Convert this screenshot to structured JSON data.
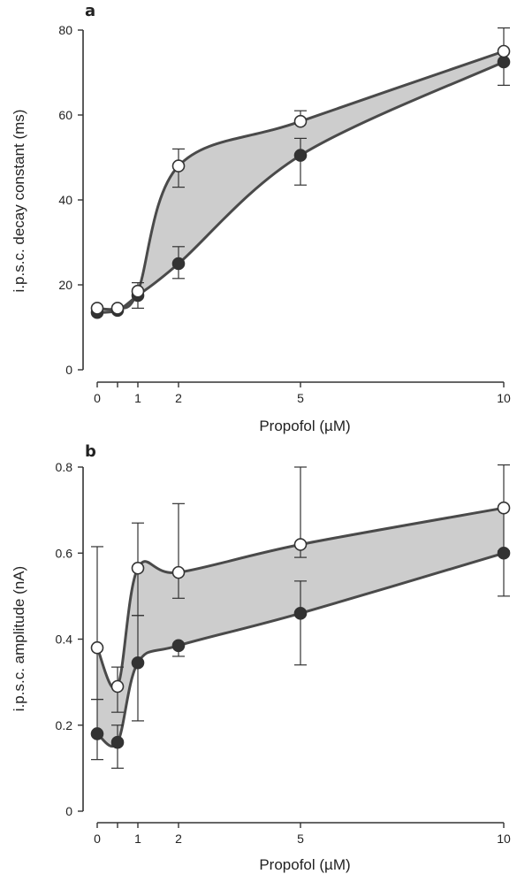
{
  "chart_data": [
    {
      "type": "line",
      "panel_label": "a",
      "xlabel": "Propofol (µM)",
      "ylabel": "i.p.s.c. decay constant (ms)",
      "xlim": [
        -0.3,
        10
      ],
      "ylim": [
        0,
        80
      ],
      "xticks": [
        0,
        0.5,
        1,
        2,
        5,
        10
      ],
      "xtick_labels": [
        "0",
        "",
        "1",
        "2",
        "5",
        "10"
      ],
      "yticks": [
        0,
        20,
        40,
        60,
        80
      ],
      "ytick_labels": [
        "0",
        "20",
        "40",
        "60",
        "80"
      ],
      "shaded_between_series": true,
      "series": [
        {
          "marker": "open-circle",
          "x": [
            0,
            0.5,
            1,
            2,
            5,
            10
          ],
          "y": [
            14.5,
            14.5,
            18.5,
            48,
            58.5,
            75
          ],
          "err_up": [
            0,
            0,
            0,
            4,
            2.5,
            5.5
          ],
          "err_down": [
            0,
            0,
            0,
            5,
            0,
            0
          ]
        },
        {
          "marker": "filled-circle",
          "x": [
            0,
            0.5,
            1,
            2,
            5,
            10
          ],
          "y": [
            13.5,
            14,
            17.5,
            25,
            50.5,
            72.5
          ],
          "err_up": [
            0,
            0,
            3,
            4,
            4,
            0
          ],
          "err_down": [
            0,
            0,
            3,
            3.5,
            7,
            5.5
          ]
        }
      ]
    },
    {
      "type": "line",
      "panel_label": "b",
      "xlabel": "Propofol (µM)",
      "ylabel": "i.p.s.c. amplitude (nA)",
      "xlim": [
        -0.3,
        10
      ],
      "ylim": [
        0,
        0.8
      ],
      "xticks": [
        0,
        0.5,
        1,
        2,
        5,
        10
      ],
      "xtick_labels": [
        "0",
        "",
        "1",
        "2",
        "5",
        "10"
      ],
      "yticks": [
        0,
        0.2,
        0.4,
        0.6,
        0.8
      ],
      "ytick_labels": [
        "0",
        "0.2",
        "0.4",
        "0.6",
        "0.8"
      ],
      "shaded_between_series": true,
      "series": [
        {
          "marker": "open-circle",
          "x": [
            0,
            0.5,
            1,
            2,
            5,
            10
          ],
          "y": [
            0.38,
            0.29,
            0.565,
            0.555,
            0.62,
            0.705
          ],
          "err_up": [
            0.235,
            0.045,
            0.105,
            0.16,
            0.18,
            0.1
          ],
          "err_down": [
            0.12,
            0.06,
            0.11,
            0.06,
            0.03,
            0.1
          ]
        },
        {
          "marker": "filled-circle",
          "x": [
            0,
            0.5,
            1,
            2,
            5,
            10
          ],
          "y": [
            0.18,
            0.16,
            0.345,
            0.385,
            0.46,
            0.6
          ],
          "err_up": [
            0.08,
            0.04,
            0.11,
            0,
            0.075,
            0
          ],
          "err_down": [
            0.06,
            0.06,
            0.135,
            0.025,
            0.12,
            0.1
          ]
        }
      ]
    }
  ]
}
